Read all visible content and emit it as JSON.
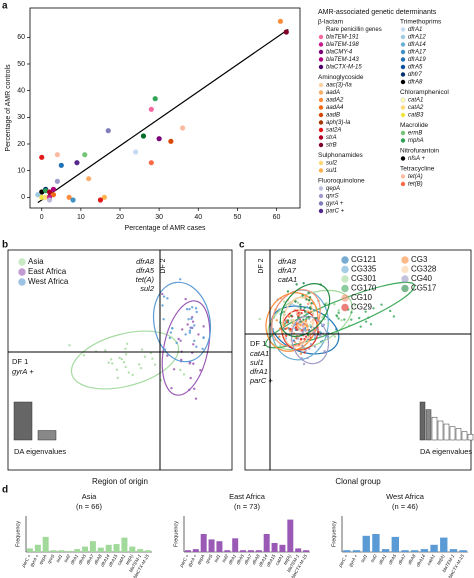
{
  "chart_data": [
    {
      "type": "scatter",
      "panel_label": "a",
      "xlabel": "Percentage of AMR cases",
      "ylabel": "Percentage of AMR controls",
      "xlim": [
        -3,
        66
      ],
      "ylim": [
        -4,
        71
      ],
      "xticks": [
        0,
        10,
        20,
        30,
        40,
        50,
        60
      ],
      "yticks": [
        0,
        10,
        20,
        30,
        40,
        50,
        60
      ],
      "x": [
        61,
        62.5,
        29,
        28,
        26,
        17,
        11,
        9,
        5,
        0,
        4,
        12,
        4,
        1,
        0,
        1,
        2,
        3,
        0,
        1,
        2,
        7,
        8,
        16,
        15,
        -1,
        3,
        2,
        30,
        28,
        36,
        33,
        24
      ],
      "y": [
        66,
        62,
        37,
        33,
        23,
        25,
        16,
        13,
        12,
        15,
        16,
        7,
        6,
        3,
        2,
        2.5,
        2,
        1,
        0,
        0,
        0,
        0,
        -1,
        0,
        -1,
        1,
        3,
        -1,
        22,
        13,
        26,
        21,
        17
      ],
      "colors": [
        "#fd8d3c",
        "#800026",
        "#31a354",
        "#f768a1",
        "#006d2c",
        "#807dba",
        "#74c476",
        "#54278f",
        "#2171b5",
        "#e31a1c",
        "#fcbba1",
        "#fdae6b",
        "#9e9ac8",
        "#08306b",
        "#000000",
        "#31a354",
        "#b10026",
        "#f16913",
        "#f0e442",
        "#fed976",
        "#c51b8a",
        "#fd8d3c",
        "#4292c6",
        "#feb24c",
        "#e31a1c",
        "#9ecae1",
        "#ae017e",
        "#bcbddc",
        "#7a0177",
        "#fb6a4a",
        "#fcbba1",
        "#d94801",
        "#c6dbef"
      ],
      "trend_line": {
        "x": [
          -1,
          63
        ],
        "y": [
          -2,
          63
        ]
      },
      "legend_title": "AMR-associated genetic determinants",
      "legend_groups": [
        {
          "name": "β-lactam",
          "subtitle": "Rare penicillin genes",
          "items": [
            {
              "label": "blaTEM-191",
              "color": "#f768a1"
            },
            {
              "label": "blaTEM-198",
              "color": "#c51b8a"
            },
            {
              "label": "blaCMY-4",
              "color": "#7a0177"
            },
            {
              "label": "blaTEM-143",
              "color": "#ae017e"
            },
            {
              "label": "blaCTX-M-15",
              "color": "#49006a"
            }
          ]
        },
        {
          "name": "Aminoglycoside",
          "items": [
            {
              "label": "aac(3)-IIa",
              "color": "#fdd0a2"
            },
            {
              "label": "aadA",
              "color": "#fdae6b"
            },
            {
              "label": "aadA2",
              "color": "#fd8d3c"
            },
            {
              "label": "aadA4",
              "color": "#f16913"
            },
            {
              "label": "aadB",
              "color": "#d94801"
            },
            {
              "label": "aph(3)-Ia",
              "color": "#a63603"
            },
            {
              "label": "sat2A",
              "color": "#e31a1c"
            },
            {
              "label": "strA",
              "color": "#b10026"
            },
            {
              "label": "strB",
              "color": "#800026"
            }
          ]
        },
        {
          "name": "Sulphonamides",
          "items": [
            {
              "label": "sul2",
              "color": "#fed976"
            },
            {
              "label": "sul1",
              "color": "#feb24c"
            }
          ]
        },
        {
          "name": "Fluoroquinolone",
          "items": [
            {
              "label": "qepA",
              "color": "#bcbddc"
            },
            {
              "label": "qnrS",
              "color": "#9e9ac8"
            },
            {
              "label": "gyrA +",
              "color": "#807dba"
            },
            {
              "label": "parC +",
              "color": "#54278f"
            }
          ]
        },
        {
          "name": "Trimethoprims",
          "items": [
            {
              "label": "dfrA1",
              "color": "#c6dbef"
            },
            {
              "label": "dfrA12",
              "color": "#9ecae1"
            },
            {
              "label": "dfrA14",
              "color": "#6baed6"
            },
            {
              "label": "dfrA17",
              "color": "#4292c6"
            },
            {
              "label": "dfrA19",
              "color": "#2171b5"
            },
            {
              "label": "dfrA5",
              "color": "#08519c"
            },
            {
              "label": "dhfr7",
              "color": "#08306b"
            },
            {
              "label": "dfrA8",
              "color": "#000000"
            }
          ]
        },
        {
          "name": "Chloramphenicol",
          "items": [
            {
              "label": "catA1",
              "color": "#ffffb2"
            },
            {
              "label": "catA2",
              "color": "#fed976"
            },
            {
              "label": "catB3",
              "color": "#f0e442"
            }
          ]
        },
        {
          "name": "Macrolide",
          "items": [
            {
              "label": "ermB",
              "color": "#74c476"
            },
            {
              "label": "mphA",
              "color": "#31a354"
            }
          ]
        },
        {
          "name": "Nitrofurantoin",
          "items": [
            {
              "label": "nfsA +",
              "color": "#000000"
            }
          ]
        },
        {
          "name": "Tetracycline",
          "items": [
            {
              "label": "tet(A)",
              "color": "#fcbba1"
            },
            {
              "label": "tet(B)",
              "color": "#fb6a4a"
            }
          ]
        }
      ]
    },
    {
      "type": "dapc",
      "panel_label": "b",
      "xlabel": "Region of origin",
      "df2_label": "DF 2",
      "df2_genes": [
        "dfrA8",
        "dfrA5",
        "tet(A)",
        "sul2"
      ],
      "df1_label": "DF 1",
      "df1_genes": [
        "gyrA +"
      ],
      "eigen_label": "DA eigenvalues",
      "eigenvalues": [
        1,
        0.25
      ],
      "eigen_ylim": [
        0,
        1
      ],
      "groups": [
        {
          "name": "Asia",
          "color": "#a6dba0"
        },
        {
          "name": "East Africa",
          "color": "#9b59b6"
        },
        {
          "name": "West Africa",
          "color": "#5b9bd5"
        }
      ]
    },
    {
      "type": "dapc",
      "panel_label": "c",
      "xlabel": "Clonal group",
      "df2_label": "DF 2",
      "df2_genes": [
        "dfrA8",
        "dfrA7",
        "catA1"
      ],
      "df1_label": "DF 1",
      "df1_genes": [
        "catA1",
        "sul1",
        "dfrA1",
        "parC +"
      ],
      "eigen_label": "DA eigenvalues",
      "eigenvalues": [
        1,
        0.8,
        0.6,
        0.5,
        0.42,
        0.35,
        0.3,
        0.22,
        0.15
      ],
      "eigen_ylim": [
        0,
        1
      ],
      "groups": [
        {
          "name": "CG121",
          "color": "#1f77b4"
        },
        {
          "name": "CG335",
          "color": "#6baed6"
        },
        {
          "name": "CG301",
          "color": "#a1d99b"
        },
        {
          "name": "CG170",
          "color": "#41ab5d"
        },
        {
          "name": "CG10",
          "color": "#fc9272"
        },
        {
          "name": "CG29",
          "color": "#de2d26"
        },
        {
          "name": "CG3",
          "color": "#fd8d3c"
        },
        {
          "name": "CG328",
          "color": "#fdd0a2"
        },
        {
          "name": "CG40",
          "color": "#9e9ac8"
        },
        {
          "name": "CG517",
          "color": "#238b45"
        }
      ]
    },
    {
      "type": "bar",
      "panel_label": "d",
      "title": "Asia",
      "subtitle": "(n = 66)",
      "ylabel": "Frequency",
      "color": "#a1d99b",
      "ylim": [
        0,
        1
      ],
      "categories": [
        "parC +",
        "gyrA +",
        "qepA",
        "qnrS",
        "sul1",
        "sul2",
        "dfrA1",
        "dfrA5",
        "dfrA7",
        "dfrA8",
        "dfrA14",
        "dfrA15",
        "catA1",
        "tet(A)",
        "blaTEM-1",
        "blaCTX-M-15"
      ],
      "values": [
        0.1,
        0.2,
        0.42,
        0.05,
        0.05,
        0.03,
        0.08,
        0.15,
        0.3,
        0.12,
        0.2,
        0.22,
        0.4,
        0.15,
        0.08,
        0.05
      ]
    },
    {
      "type": "bar",
      "title": "East Africa",
      "subtitle": "(n = 73)",
      "ylabel": "Frequency",
      "color": "#9b59b6",
      "ylim": [
        0,
        1
      ],
      "categories": [
        "parC +",
        "gyrA +",
        "qepA",
        "qnrS",
        "sul1",
        "sul2",
        "dfrA1",
        "dfrA5",
        "dfrA7",
        "dfrA8",
        "dfrA14",
        "dfrA15",
        "catA1",
        "tet(A)",
        "blaTEM-1",
        "blaCTX-M-15"
      ],
      "values": [
        0.05,
        0.08,
        0.5,
        0.35,
        0.3,
        0.05,
        0.38,
        0.05,
        0.05,
        0.05,
        0.5,
        0.25,
        0.2,
        0.9,
        0.1,
        0.05
      ]
    },
    {
      "type": "bar",
      "title": "West Africa",
      "subtitle": "(n = 46)",
      "ylabel": "Frequency",
      "color": "#5b9bd5",
      "ylim": [
        0,
        1
      ],
      "categories": [
        "parC +",
        "gyrA +",
        "sul1",
        "sul2",
        "dfrA1",
        "dfrA5",
        "dfrA7",
        "dfrA8",
        "dfrA14",
        "catA1",
        "tet(A)",
        "blaTEM-1",
        "blaCTX-M-15"
      ],
      "values": [
        0.05,
        0.05,
        0.45,
        0.5,
        0.08,
        0.42,
        0.05,
        0.05,
        0.08,
        0.2,
        0.4,
        0.08,
        0.05
      ]
    }
  ]
}
